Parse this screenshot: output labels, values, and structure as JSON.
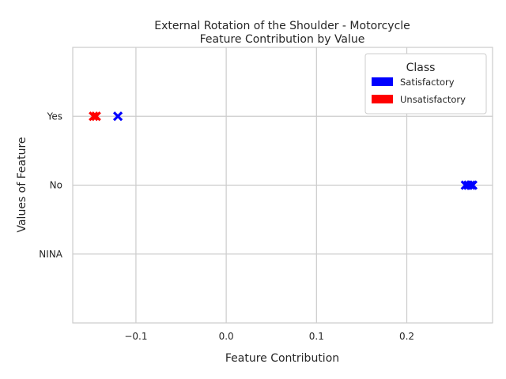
{
  "chart_data": {
    "type": "scatter",
    "title_lines": [
      "External Rotation of the Shoulder - Motorcycle",
      "Feature Contribution by Value"
    ],
    "xlabel": "Feature Contribution",
    "ylabel": "Values of Feature",
    "xlim": [
      -0.17,
      0.295
    ],
    "x_ticks": [
      -0.1,
      0.0,
      0.1,
      0.2
    ],
    "x_tick_labels": [
      "−0.1",
      "0.0",
      "0.1",
      "0.2"
    ],
    "y_categories": [
      "NINA",
      "No",
      "Yes"
    ],
    "grid": true,
    "marker": "x",
    "legend": {
      "title": "Class",
      "placement": "top-right",
      "entries": [
        {
          "label": "Satisfactory",
          "color": "#0000ff"
        },
        {
          "label": "Unsatisfactory",
          "color": "#ff0000"
        }
      ]
    },
    "series": [
      {
        "name": "Satisfactory",
        "color": "#0000ff",
        "points": [
          {
            "x": -0.12,
            "y": "Yes"
          },
          {
            "x": 0.265,
            "y": "No"
          },
          {
            "x": 0.268,
            "y": "No"
          },
          {
            "x": 0.271,
            "y": "No"
          },
          {
            "x": 0.273,
            "y": "No"
          }
        ]
      },
      {
        "name": "Unsatisfactory",
        "color": "#ff0000",
        "points": [
          {
            "x": -0.147,
            "y": "Yes"
          },
          {
            "x": -0.144,
            "y": "Yes"
          }
        ]
      }
    ]
  }
}
